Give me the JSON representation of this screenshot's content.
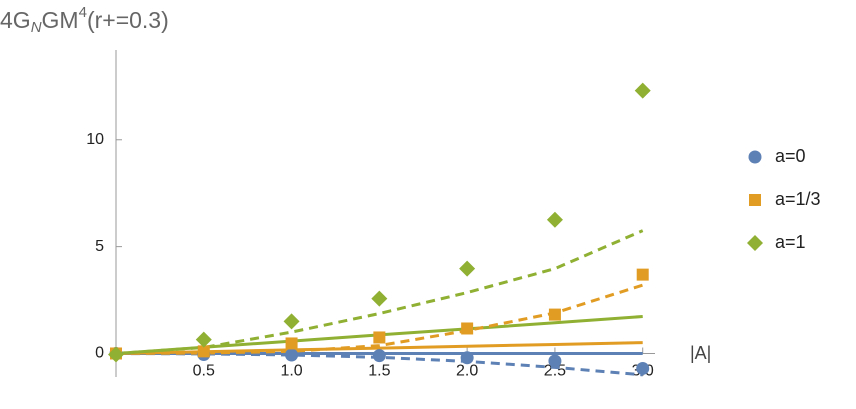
{
  "chart_data": {
    "type": "scatter",
    "y_label": {
      "base": "4G",
      "sub": "N",
      "mid": "GM",
      "sup": "4",
      "tail": "(r+=0.3)"
    },
    "x_label": "|A|",
    "x": [
      0,
      0.5,
      1.0,
      1.5,
      2.0,
      2.5,
      3.0
    ],
    "series": [
      {
        "name": "a=0",
        "color": "#5e81b5",
        "marker": "circle",
        "values": [
          0,
          -0.05,
          -0.07,
          -0.1,
          -0.2,
          -0.35,
          -0.7
        ]
      },
      {
        "name": "a=1/3",
        "color": "#e19c24",
        "marker": "square",
        "values": [
          0,
          0.1,
          0.47,
          0.75,
          1.17,
          1.82,
          3.69
        ]
      },
      {
        "name": "a=1",
        "color": "#8fb032",
        "marker": "diamond",
        "values": [
          -0.05,
          0.65,
          1.5,
          2.57,
          3.97,
          6.26,
          12.3
        ]
      }
    ],
    "fits": [
      {
        "color": "#5e81b5",
        "dash": false,
        "values": [
          0,
          0,
          0,
          0,
          0,
          0,
          0
        ]
      },
      {
        "color": "#e19c24",
        "dash": false,
        "values": [
          0,
          0.08,
          0.17,
          0.25,
          0.34,
          0.42,
          0.51
        ]
      },
      {
        "color": "#8fb032",
        "dash": false,
        "values": [
          0,
          0.29,
          0.58,
          0.87,
          1.15,
          1.44,
          1.73
        ]
      },
      {
        "color": "#5e81b5",
        "dash": true,
        "values": [
          0,
          -0.02,
          -0.07,
          -0.18,
          -0.37,
          -0.65,
          -1.0
        ]
      },
      {
        "color": "#e19c24",
        "dash": true,
        "values": [
          0,
          0.02,
          0.1,
          0.37,
          1.07,
          1.9,
          3.2
        ]
      },
      {
        "color": "#8fb032",
        "dash": true,
        "values": [
          0,
          0.28,
          1.0,
          1.87,
          2.85,
          3.97,
          5.75
        ]
      }
    ],
    "xlim": [
      0,
      3.07
    ],
    "ylim": [
      -1.1,
      14.2
    ],
    "xticks": [
      0.5,
      {
        "value": 1.0,
        "label": "1.0"
      },
      1.5,
      {
        "value": 2.0,
        "label": "2.0"
      },
      2.5,
      {
        "value": 3.0,
        "label": "3.0"
      }
    ],
    "yticks": [
      0,
      5,
      10
    ]
  }
}
